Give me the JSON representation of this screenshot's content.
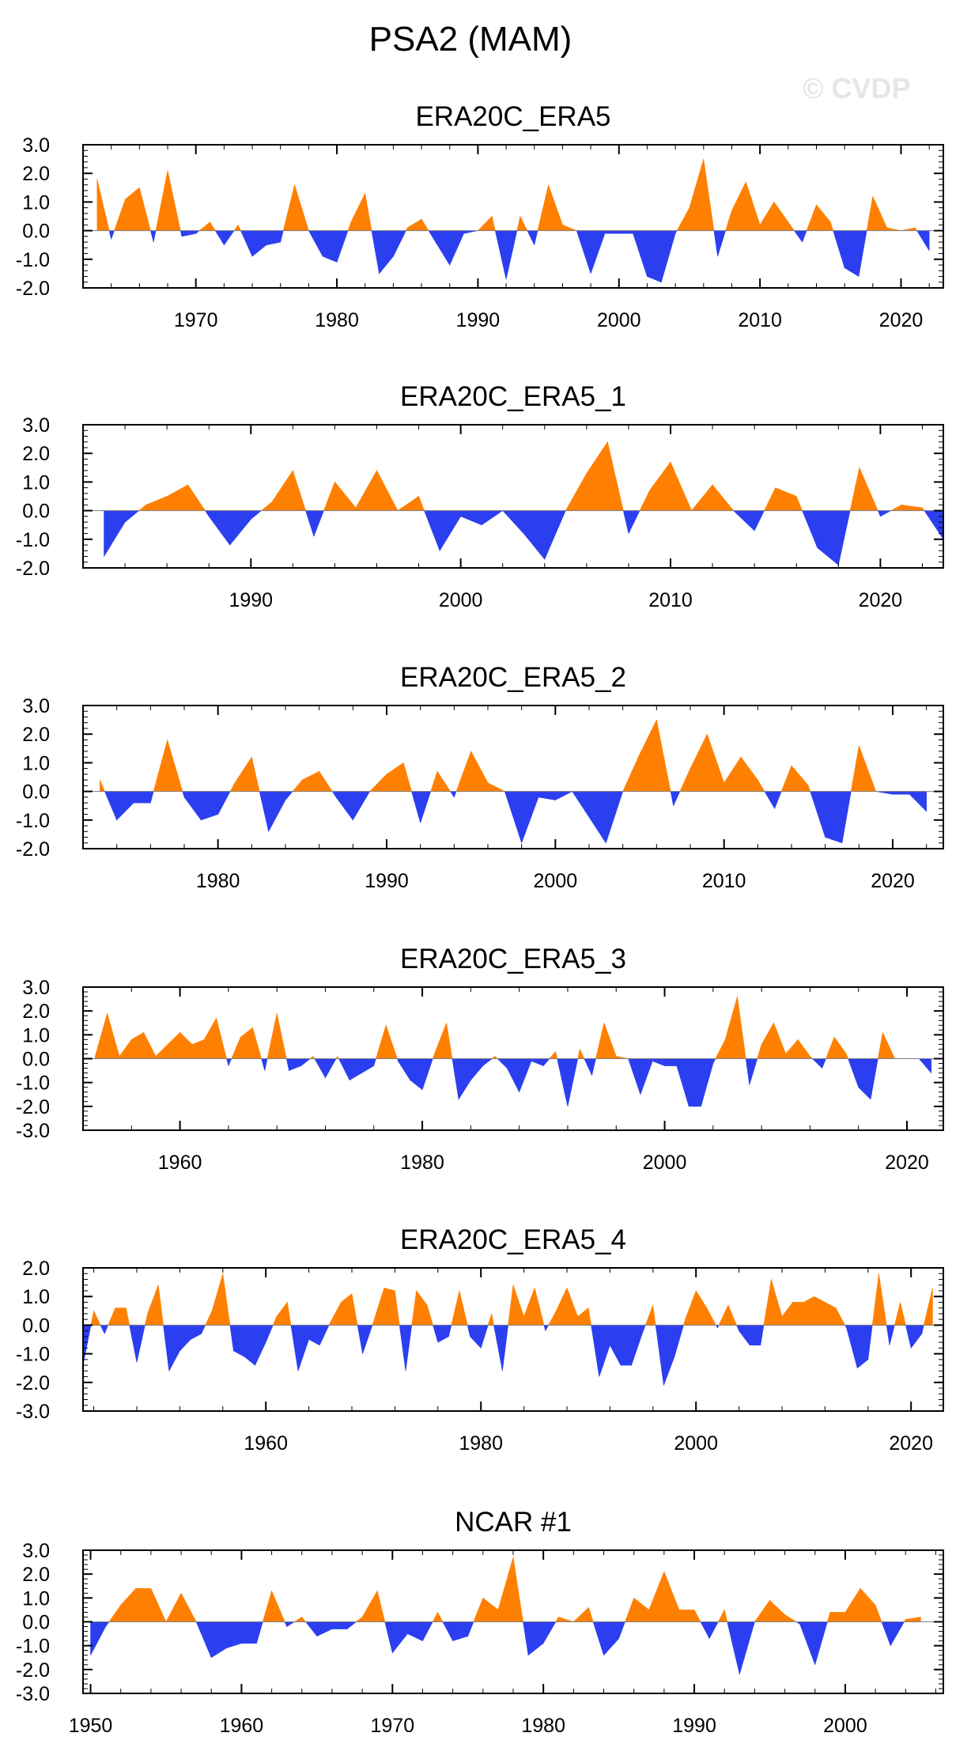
{
  "page": {
    "title": "PSA2 (MAM)",
    "watermark": "© CVDP"
  },
  "colors": {
    "positive": "#ff8000",
    "negative": "#2b3ff0",
    "axis": "#000000"
  },
  "chart_data": [
    {
      "type": "area",
      "title": "ERA20C_ERA5",
      "xlim": [
        1962,
        2023
      ],
      "ylim": [
        -2.0,
        3.0
      ],
      "yticks": [
        -2.0,
        -1.0,
        0.0,
        1.0,
        2.0,
        3.0
      ],
      "xticks": [
        1970,
        1980,
        1990,
        2000,
        2010,
        2020
      ],
      "x_start": 1963,
      "values": [
        1.8,
        -0.3,
        1.1,
        1.5,
        -0.4,
        2.1,
        -0.2,
        -0.1,
        0.3,
        -0.5,
        0.2,
        -0.9,
        -0.5,
        -0.4,
        1.6,
        0.0,
        -0.9,
        -1.1,
        0.3,
        1.3,
        -1.5,
        -0.9,
        0.1,
        0.4,
        -0.4,
        -1.2,
        -0.1,
        0.0,
        0.5,
        -1.7,
        0.5,
        -0.5,
        1.6,
        0.2,
        0.0,
        -1.5,
        -0.1,
        -0.1,
        -0.1,
        -1.6,
        -1.8,
        -0.1,
        0.8,
        2.5,
        -0.9,
        0.7,
        1.7,
        0.2,
        1.0,
        0.3,
        -0.4,
        0.9,
        0.3,
        -1.3,
        -1.6,
        1.2,
        0.1,
        0.0,
        0.1,
        -0.7
      ]
    },
    {
      "type": "area",
      "title": "ERA20C_ERA5_1",
      "xlim": [
        1982,
        2023
      ],
      "ylim": [
        -2.0,
        3.0
      ],
      "yticks": [
        -2.0,
        -1.0,
        0.0,
        1.0,
        2.0,
        3.0
      ],
      "xticks": [
        1990,
        2000,
        2010,
        2020
      ],
      "x_start": 1983,
      "values": [
        -1.6,
        -0.4,
        0.2,
        0.5,
        0.9,
        -0.2,
        -1.2,
        -0.3,
        0.3,
        1.4,
        -0.9,
        1.0,
        0.1,
        1.4,
        0.0,
        0.5,
        -1.4,
        -0.2,
        -0.5,
        0.0,
        -0.8,
        -1.7,
        0.0,
        1.3,
        2.4,
        -0.8,
        0.7,
        1.7,
        0.0,
        0.9,
        0.0,
        -0.7,
        0.8,
        0.5,
        -1.3,
        -1.9,
        1.5,
        -0.2,
        0.2,
        0.1,
        -1.0
      ]
    },
    {
      "type": "area",
      "title": "ERA20C_ERA5_2",
      "xlim": [
        1972,
        2023
      ],
      "ylim": [
        -2.0,
        3.0
      ],
      "yticks": [
        -2.0,
        -1.0,
        0.0,
        1.0,
        2.0,
        3.0
      ],
      "xticks": [
        1980,
        1990,
        2000,
        2010,
        2020
      ],
      "x_start": 1973,
      "values": [
        0.4,
        -1.0,
        -0.4,
        -0.4,
        1.8,
        -0.2,
        -1.0,
        -0.8,
        0.3,
        1.2,
        -1.4,
        -0.3,
        0.4,
        0.7,
        -0.2,
        -1.0,
        0.0,
        0.6,
        1.0,
        -1.1,
        0.7,
        -0.2,
        1.4,
        0.3,
        0.0,
        -1.8,
        -0.2,
        -0.3,
        0.0,
        -0.9,
        -1.8,
        0.0,
        1.3,
        2.5,
        -0.5,
        0.8,
        2.0,
        0.3,
        1.2,
        0.4,
        -0.6,
        0.9,
        0.2,
        -1.6,
        -1.8,
        1.6,
        0.0,
        -0.1,
        -0.1,
        -0.7
      ]
    },
    {
      "type": "area",
      "title": "ERA20C_ERA5_3",
      "xlim": [
        1952,
        2023
      ],
      "ylim": [
        -3.0,
        3.0
      ],
      "yticks": [
        -3.0,
        -2.0,
        -1.0,
        0.0,
        1.0,
        2.0,
        3.0
      ],
      "xticks": [
        1960,
        1980,
        2000,
        2020
      ],
      "x_start": 1953,
      "values": [
        0.1,
        1.9,
        0.1,
        0.8,
        1.1,
        0.1,
        0.6,
        1.1,
        0.6,
        0.8,
        1.7,
        -0.3,
        0.9,
        1.3,
        -0.5,
        1.9,
        -0.5,
        -0.3,
        0.1,
        -0.8,
        0.1,
        -0.9,
        -0.6,
        -0.3,
        1.4,
        -0.1,
        -0.9,
        -1.3,
        0.2,
        1.5,
        -1.7,
        -0.9,
        -0.3,
        0.1,
        -0.4,
        -1.4,
        -0.1,
        -0.3,
        0.3,
        -2.0,
        0.4,
        -0.7,
        1.5,
        0.1,
        0.0,
        -1.5,
        -0.1,
        -0.3,
        -0.3,
        -2.0,
        -2.0,
        -0.2,
        0.8,
        2.6,
        -1.1,
        0.6,
        1.5,
        0.2,
        0.8,
        0.1,
        -0.4,
        0.9,
        0.2,
        -1.2,
        -1.7,
        1.1,
        0.0,
        0.0,
        0.0,
        -0.6
      ]
    },
    {
      "type": "area",
      "title": "ERA20C_ERA5_4",
      "xlim": [
        1943,
        2023
      ],
      "ylim": [
        -3.0,
        2.0
      ],
      "yticks": [
        -3.0,
        -2.0,
        -1.0,
        0.0,
        1.0,
        2.0
      ],
      "xticks": [
        1960,
        1980,
        2000,
        2020
      ],
      "x_start": 1943,
      "values": [
        -1.4,
        0.5,
        -0.3,
        0.6,
        0.6,
        -1.3,
        0.4,
        1.4,
        -1.6,
        -0.9,
        -0.5,
        -0.3,
        0.5,
        1.8,
        -0.9,
        -1.1,
        -1.4,
        -0.6,
        0.3,
        0.8,
        -1.6,
        -0.5,
        -0.7,
        0.1,
        0.8,
        1.1,
        -1.0,
        0.1,
        1.3,
        1.2,
        -1.6,
        1.2,
        0.7,
        -0.6,
        -0.4,
        1.2,
        -0.4,
        -0.8,
        0.4,
        -1.6,
        1.4,
        0.3,
        1.3,
        -0.2,
        0.5,
        1.3,
        0.3,
        0.6,
        -1.8,
        -0.7,
        -1.4,
        -1.4,
        -0.3,
        0.7,
        -2.1,
        -1.1,
        0.2,
        1.2,
        0.6,
        -0.1,
        0.7,
        -0.2,
        -0.7,
        -0.7,
        1.6,
        0.3,
        0.8,
        0.8,
        1.0,
        0.8,
        0.6,
        -0.1,
        -1.5,
        -1.2,
        1.8,
        -0.7,
        0.8,
        -0.8,
        -0.3,
        1.3
      ]
    },
    {
      "type": "area",
      "title": "NCAR #1",
      "xlim": [
        1949.5,
        2006.5
      ],
      "ylim": [
        -3.0,
        3.0
      ],
      "yticks": [
        -3.0,
        -2.0,
        -1.0,
        0.0,
        1.0,
        2.0,
        3.0
      ],
      "xticks": [
        1950,
        1960,
        1970,
        1980,
        1990,
        2000
      ],
      "x_start": 1950,
      "values": [
        -1.4,
        -0.2,
        0.7,
        1.4,
        1.4,
        0.0,
        1.2,
        0.0,
        -1.5,
        -1.1,
        -0.9,
        -0.9,
        1.3,
        -0.2,
        0.2,
        -0.6,
        -0.3,
        -0.3,
        0.2,
        1.3,
        -1.3,
        -0.5,
        -0.8,
        0.4,
        -0.8,
        -0.6,
        1.0,
        0.5,
        2.7,
        -1.4,
        -0.9,
        0.2,
        0.0,
        0.6,
        -1.4,
        -0.7,
        1.0,
        0.5,
        2.1,
        0.5,
        0.5,
        -0.7,
        0.5,
        -2.2,
        0.0,
        0.9,
        0.3,
        -0.1,
        -1.8,
        0.4,
        0.4,
        1.4,
        0.7,
        -1.0,
        0.1,
        0.2
      ]
    }
  ]
}
